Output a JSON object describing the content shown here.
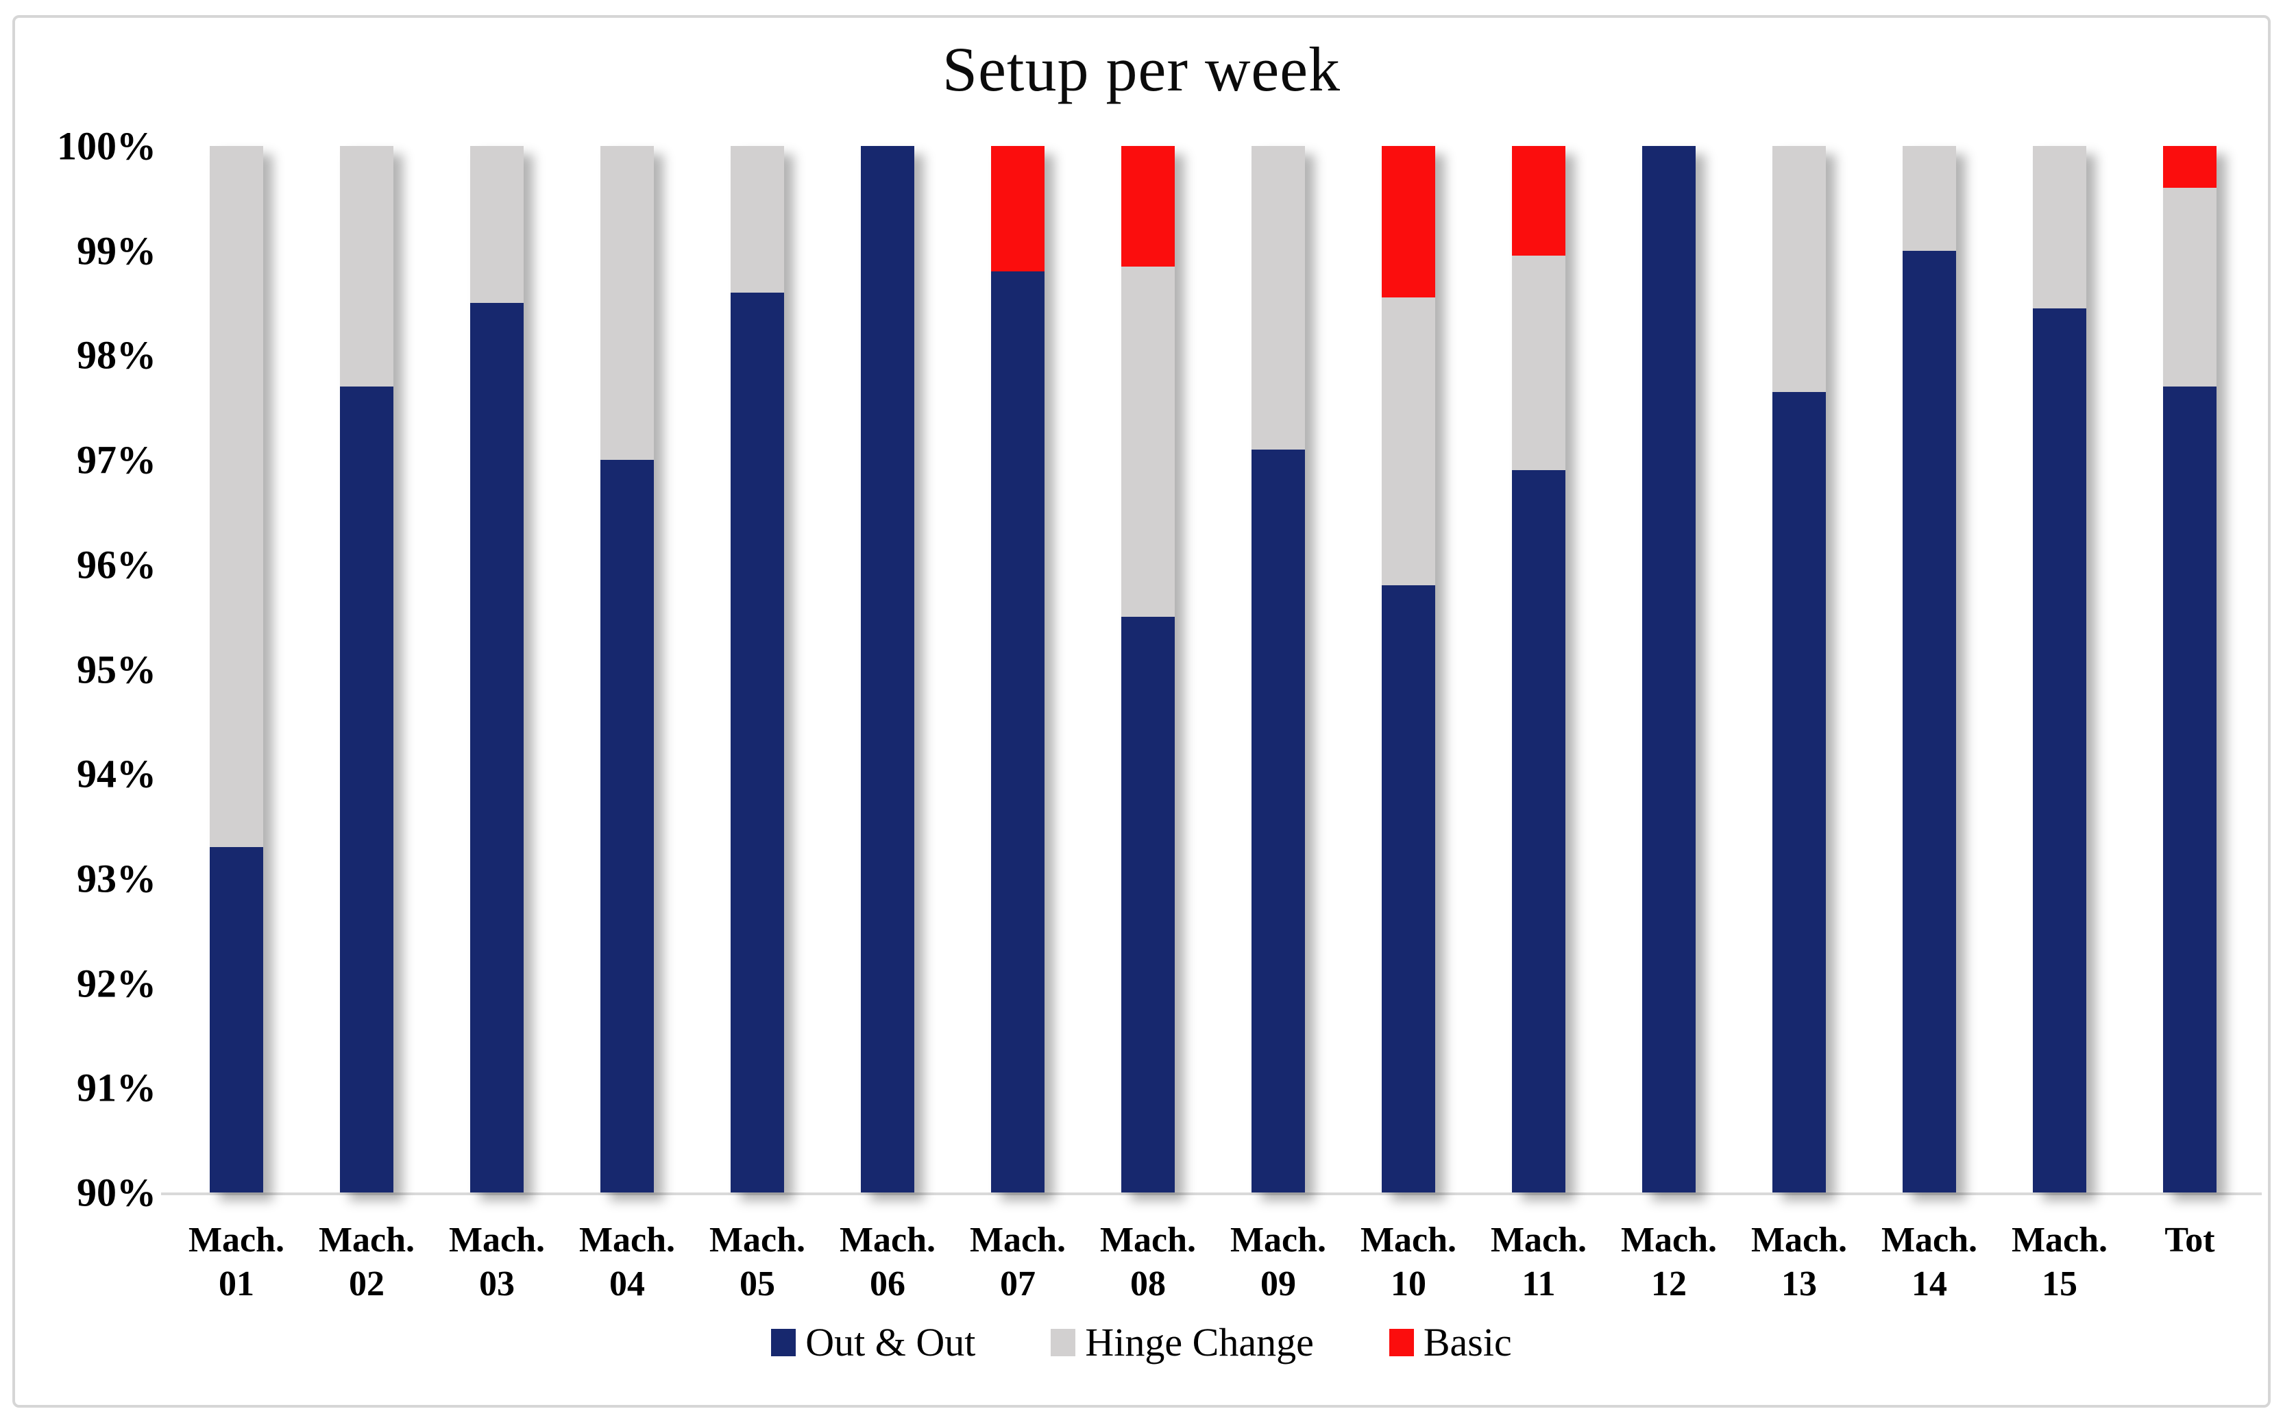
{
  "title": "Setup per week",
  "colors": {
    "out_and_out": "#17286e",
    "hinge_change": "#d2d0d0",
    "basic": "#fb0d0d",
    "axis_line": "#d9d9d9",
    "frame_border": "#d6d6d6"
  },
  "legend": {
    "items": [
      {
        "label": "Out & Out",
        "color": "#17286e"
      },
      {
        "label": "Hinge Change",
        "color": "#d2d0d0"
      },
      {
        "label": "Basic",
        "color": "#fb0d0d"
      }
    ]
  },
  "chart_data": {
    "type": "bar",
    "stacked": true,
    "title": "Setup per week",
    "xlabel": "",
    "ylabel": "",
    "ylim": [
      90,
      100
    ],
    "ytick_labels": [
      "100%",
      "99%",
      "98%",
      "97%",
      "96%",
      "95%",
      "94%",
      "93%",
      "92%",
      "91%",
      "90%"
    ],
    "grid": false,
    "legend_position": "bottom",
    "categories": [
      "Mach. 01",
      "Mach. 02",
      "Mach. 03",
      "Mach. 04",
      "Mach. 05",
      "Mach. 06",
      "Mach. 07",
      "Mach. 08",
      "Mach. 09",
      "Mach. 10",
      "Mach. 11",
      "Mach. 12",
      "Mach. 13",
      "Mach. 14",
      "Mach. 15",
      "Tot"
    ],
    "category_lines": [
      [
        "Mach.",
        "01"
      ],
      [
        "Mach.",
        "02"
      ],
      [
        "Mach.",
        "03"
      ],
      [
        "Mach.",
        "04"
      ],
      [
        "Mach.",
        "05"
      ],
      [
        "Mach.",
        "06"
      ],
      [
        "Mach.",
        "07"
      ],
      [
        "Mach.",
        "08"
      ],
      [
        "Mach.",
        "09"
      ],
      [
        "Mach.",
        "10"
      ],
      [
        "Mach.",
        "11"
      ],
      [
        "Mach.",
        "12"
      ],
      [
        "Mach.",
        "13"
      ],
      [
        "Mach.",
        "14"
      ],
      [
        "Mach.",
        "15"
      ],
      [
        "Tot"
      ]
    ],
    "series": [
      {
        "name": "Out & Out",
        "color": "#17286e",
        "values": [
          93.3,
          97.7,
          98.5,
          97.0,
          98.6,
          100.0,
          98.8,
          95.5,
          97.1,
          95.8,
          96.9,
          100.0,
          97.65,
          99.0,
          98.45,
          97.7
        ],
        "note": "cumulative top of navy segment, base 90%"
      },
      {
        "name": "Hinge Change",
        "color": "#d2d0d0",
        "values": [
          6.7,
          2.3,
          1.5,
          3.0,
          1.4,
          0.0,
          0.0,
          3.35,
          2.9,
          2.75,
          2.05,
          0.0,
          2.35,
          1.0,
          1.55,
          1.9
        ]
      },
      {
        "name": "Basic",
        "color": "#fb0d0d",
        "values": [
          0.0,
          0.0,
          0.0,
          0.0,
          0.0,
          0.0,
          1.2,
          1.15,
          0.0,
          1.45,
          1.05,
          0.0,
          0.0,
          0.0,
          0.0,
          0.4
        ]
      }
    ]
  }
}
